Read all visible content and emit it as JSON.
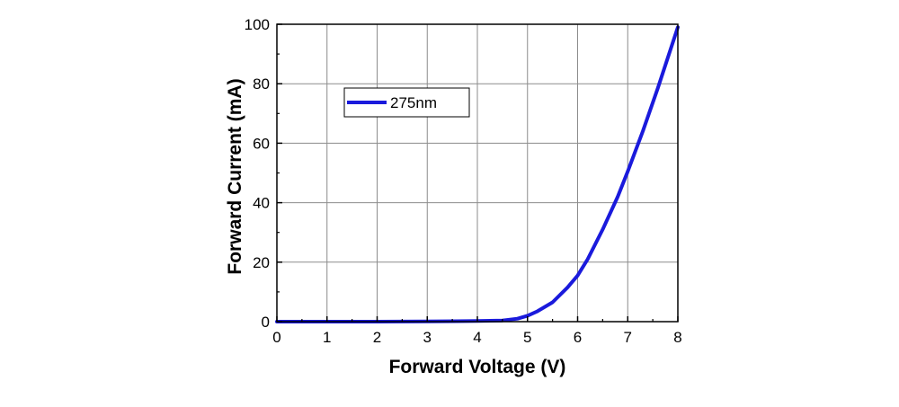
{
  "chart_data": {
    "type": "line",
    "title": "",
    "xlabel": "Forward Voltage (V)",
    "ylabel": "Forward Current (mA)",
    "xlim": [
      0,
      8
    ],
    "ylim": [
      0,
      100
    ],
    "xticks": [
      0,
      1,
      2,
      3,
      4,
      5,
      6,
      7,
      8
    ],
    "yticks": [
      0,
      20,
      40,
      60,
      80,
      100
    ],
    "grid": true,
    "legend_position": "upper-left",
    "series": [
      {
        "name": "275nm",
        "color": "#1a1adc",
        "x": [
          0,
          1,
          2,
          3,
          4,
          4.5,
          4.8,
          5.0,
          5.2,
          5.5,
          5.8,
          6.0,
          6.2,
          6.5,
          6.8,
          7.0,
          7.3,
          7.6,
          8.0
        ],
        "y": [
          0,
          0,
          0,
          0.1,
          0.2,
          0.4,
          1.0,
          2.0,
          3.5,
          6.5,
          11.5,
          15.5,
          21.0,
          31.0,
          42.0,
          50.5,
          64.0,
          78.5,
          99.0
        ]
      }
    ]
  }
}
